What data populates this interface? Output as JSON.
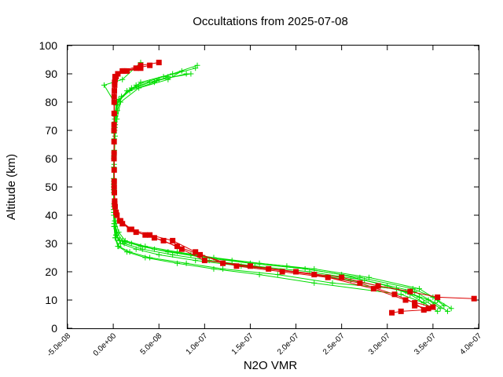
{
  "chart_data": {
    "type": "scatter",
    "title": "Occultations from 2025-07-08",
    "xlabel": "N2O VMR",
    "ylabel": "Altitude (km)",
    "xlim": [
      -5e-08,
      4e-07
    ],
    "ylim": [
      0,
      100
    ],
    "x_ticks": [
      "-5.0e-08",
      "0.0e+00",
      "5.0e-08",
      "1.0e-07",
      "1.5e-07",
      "2.0e-07",
      "2.5e-07",
      "3.0e-07",
      "3.5e-07",
      "4.0e-07"
    ],
    "x_tick_values": [
      -5e-08,
      0,
      5e-08,
      1e-07,
      1.5e-07,
      2e-07,
      2.5e-07,
      3e-07,
      3.5e-07,
      4e-07
    ],
    "y_ticks": [
      "0",
      "10",
      "20",
      "30",
      "40",
      "50",
      "60",
      "70",
      "80",
      "90",
      "100"
    ],
    "y_tick_values": [
      0,
      10,
      20,
      30,
      40,
      50,
      60,
      70,
      80,
      90,
      100
    ],
    "grid": false,
    "legend": "none",
    "series": [
      {
        "marker": "plus",
        "color": "#00dd00",
        "profiles": [
          {
            "x": [
              3.58e-07,
              3.45e-07,
              3.2e-07,
              2.6e-07,
              2e-07,
              1.4e-07,
              9e-08,
              5e-08,
              2.5e-08,
              8e-09,
              3e-09,
              1e-09,
              5e-10,
              5e-10,
              8e-10,
              1.5e-09,
              2.5e-09,
              5e-09,
              2e-08,
              5e-08,
              8.5e-08
            ],
            "y": [
              7,
              10,
              13,
              17,
              20,
              22,
              24,
              26,
              28,
              30,
              33,
              37,
              42,
              50,
              60,
              70,
              75,
              80,
              85,
              88,
              90
            ]
          },
          {
            "x": [
              3.62e-07,
              3.5e-07,
              3.28e-07,
              2.7e-07,
              2.1e-07,
              1.5e-07,
              1e-07,
              6e-08,
              3e-08,
              1e-08,
              4e-09,
              1.5e-09,
              6e-10,
              5e-10,
              9e-10,
              1.8e-09,
              3e-09,
              6e-09,
              2.5e-08,
              5.5e-08,
              9e-08
            ],
            "y": [
              8,
              11,
              14,
              18,
              21,
              23,
              25,
              27,
              29,
              31,
              34,
              38,
              43,
              52,
              62,
              71,
              76,
              81,
              86,
              89,
              92
            ]
          },
          {
            "x": [
              3.66e-07,
              3.52e-07,
              3.3e-07,
              2.75e-07,
              2.15e-07,
              1.55e-07,
              1.05e-07,
              6.5e-08,
              3.2e-08,
              1.2e-08,
              5e-09,
              2e-09,
              7e-10,
              5e-10,
              1e-09,
              2e-09,
              4e-09,
              8e-09,
              2.8e-08,
              6e-08,
              7.5e-08
            ],
            "y": [
              6,
              9,
              13,
              17,
              20,
              22,
              24,
              26,
              28,
              30,
              32,
              36,
              41,
              49,
              58,
              68,
              74,
              80,
              85,
              88,
              91
            ]
          },
          {
            "x": [
              3.4e-07,
              3.25e-07,
              3e-07,
              2.5e-07,
              1.9e-07,
              1.3e-07,
              8.5e-08,
              4.5e-08,
              2e-08,
              7e-09,
              3e-09,
              1e-09,
              5e-10,
              5e-10,
              7e-10,
              1.2e-09,
              2e-09,
              4e-09,
              1.8e-08,
              4.5e-08,
              6e-08
            ],
            "y": [
              9,
              12,
              15,
              19,
              22,
              24,
              26,
              28,
              30,
              31,
              33,
              37,
              42,
              51,
              61,
              70,
              75,
              80,
              84,
              87,
              89
            ]
          },
          {
            "x": [
              3.7e-07,
              3.55e-07,
              3.35e-07,
              2.8e-07,
              2.2e-07,
              1.6e-07,
              1.1e-07,
              7e-08,
              3.5e-08,
              1.3e-08,
              6e-09,
              2.5e-09,
              8e-10,
              5e-10,
              1.1e-09,
              2.2e-09,
              4.5e-09,
              9e-09,
              3e-08,
              6.5e-08,
              9.2e-08
            ],
            "y": [
              7,
              10,
              14,
              18,
              21,
              23,
              25,
              27,
              29,
              31,
              34,
              38,
              44,
              53,
              63,
              72,
              77,
              82,
              87,
              90,
              93
            ]
          },
          {
            "x": [
              3.5e-07,
              3.35e-07,
              3.1e-07,
              2.4e-07,
              1.8e-07,
              1.2e-07,
              8e-08,
              4e-08,
              1.8e-08,
              6e-09,
              2.5e-09,
              1e-09,
              5e-10,
              5e-10,
              6e-10,
              1e-09,
              1.8e-09,
              3.5e-09,
              1.5e-08,
              4e-08,
              8e-08
            ],
            "y": [
              8,
              11,
              14,
              16,
              19,
              21,
              23,
              25,
              27,
              29,
              32,
              36,
              40,
              48,
              57,
              67,
              73,
              79,
              84,
              87,
              90
            ]
          },
          {
            "x": [
              3.55e-07,
              3.4e-07,
              3.15e-07,
              2.2e-07,
              1.6e-07,
              1.1e-07,
              7e-08,
              3.5e-08,
              1.5e-08,
              5e-09,
              2e-09,
              8e-10,
              5e-10,
              5e-10,
              6e-10,
              9e-10,
              1.5e-09,
              3e-09,
              -1e-08,
              1e-08,
              3e-08
            ],
            "y": [
              6,
              9,
              12,
              16,
              19,
              21,
              23,
              25,
              27,
              29,
              32,
              36,
              41,
              50,
              60,
              69,
              74,
              79,
              86,
              88,
              94
            ]
          }
        ]
      },
      {
        "marker": "square",
        "color": "#dd0000",
        "profiles": [
          {
            "x": [
              3.05e-07,
              3.15e-07,
              3.4e-07,
              3.3e-07,
              3.08e-07,
              2.7e-07,
              2.2e-07,
              1.7e-07,
              1.2e-07,
              9e-08,
              6.5e-08,
              4e-08,
              2e-08,
              8e-09,
              3e-09,
              1.5e-09,
              1e-09,
              8e-10,
              8e-10,
              1e-09,
              1.5e-09,
              2e-09,
              1e-08,
              3e-08,
              5e-08
            ],
            "y": [
              5.5,
              6,
              6.5,
              9,
              12,
              16,
              19,
              21,
              23,
              27,
              31,
              33,
              35,
              38,
              41,
              44,
              50,
              60,
              70,
              80,
              86,
              89,
              91,
              93,
              94
            ]
          },
          {
            "x": [
              3.95e-07,
              3.55e-07,
              3.25e-07,
              2.9e-07,
              2.5e-07,
              2e-07,
              1.5e-07,
              1e-07,
              7.5e-08,
              5.5e-08,
              3.5e-08,
              1.8e-08,
              7e-09,
              3e-09,
              1.5e-09,
              1e-09,
              9e-10,
              9e-10,
              1e-09,
              1.5e-09,
              3e-09,
              1.2e-08,
              2.5e-08,
              4e-08
            ],
            "y": [
              10.5,
              11,
              13,
              15,
              18,
              20,
              22,
              24,
              28,
              31,
              33,
              35,
              38,
              41,
              45,
              52,
              62,
              72,
              82,
              87,
              89,
              91,
              92,
              93
            ]
          },
          {
            "x": [
              3.3e-07,
              3.45e-07,
              3.5e-07,
              3.2e-07,
              2.85e-07,
              2.35e-07,
              1.85e-07,
              1.35e-07,
              9.5e-08,
              7e-08,
              4.5e-08,
              2.5e-08,
              1e-08,
              4e-09,
              2e-09,
              1.2e-09,
              1e-09,
              9e-10,
              1e-09,
              1.2e-09,
              2e-09,
              5e-09,
              1.5e-08,
              3e-08
            ],
            "y": [
              8,
              7,
              7.5,
              10,
              14,
              18,
              20,
              22,
              26,
              29,
              32,
              34,
              37,
              40,
              43,
              48,
              56,
              66,
              76,
              84,
              88,
              90,
              91,
              92
            ]
          }
        ]
      }
    ]
  }
}
